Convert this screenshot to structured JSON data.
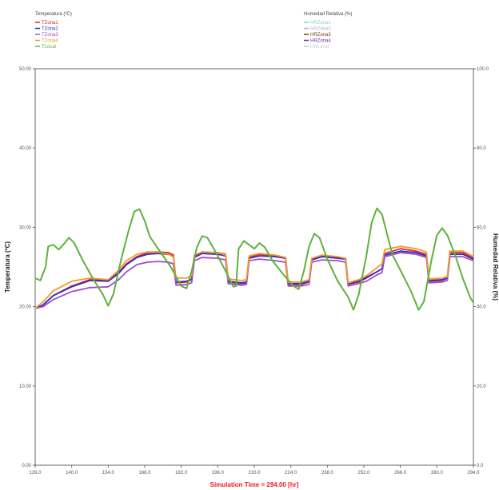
{
  "legend_left": {
    "title": "Temperatura (ºC)",
    "entries": [
      {
        "label": "TZona1",
        "color": "#e0242a"
      },
      {
        "label": "TZona2",
        "color": "#3030c0"
      },
      {
        "label": "TZona3",
        "color": "#9b4fd0"
      },
      {
        "label": "TZona4",
        "color": "#f39a2b"
      },
      {
        "label": "TLocal",
        "color": "#5cb33b"
      }
    ]
  },
  "legend_right": {
    "title": "Humedad Relativa (%)",
    "entries": [
      {
        "label": "HRZona1",
        "color": "#7fd6c8"
      },
      {
        "label": "HRZona2",
        "color": "#b0b0d8"
      },
      {
        "label": "HRZona3",
        "color": "#7b3a1a"
      },
      {
        "label": "HRZona4",
        "color": "#6a2fa0"
      },
      {
        "label": "HRLocal",
        "color": "#c9c9c9"
      }
    ]
  },
  "colors": {
    "x_title": "#e8202a",
    "frame": "#666666"
  },
  "chart_data": {
    "type": "line",
    "xlabel": "Simulation Time = 294.00 [hr]",
    "ylabel": "Temperatura (ºC)",
    "y2label": "Humedad Relativa (%)",
    "xlim": [
      126,
      294
    ],
    "ylim": [
      0,
      50
    ],
    "y2lim": [
      0,
      100
    ],
    "x_ticks": [
      "126.0",
      "140.0",
      "154.0",
      "168.0",
      "182.0",
      "196.0",
      "210.0",
      "224.0",
      "238.0",
      "252.0",
      "266.0",
      "280.0",
      "294.0"
    ],
    "y_ticks": [
      "0.00",
      "10.00",
      "20.00",
      "30.00",
      "40.00",
      "50.00"
    ],
    "y2_ticks": [
      "0.0",
      "20.0",
      "40.0",
      "60.0",
      "80.0",
      "100.0"
    ],
    "grid": false,
    "legend_position": "top",
    "series": [
      {
        "name": "TZona1",
        "color": "#e0242a",
        "points": [
          [
            126,
            19.8
          ],
          [
            129,
            20.2
          ],
          [
            133,
            21.4
          ],
          [
            140,
            22.6
          ],
          [
            147,
            23.4
          ],
          [
            154,
            23.3
          ],
          [
            158,
            24.3
          ],
          [
            161,
            25.4
          ],
          [
            165,
            26.3
          ],
          [
            169,
            26.8
          ],
          [
            173,
            26.9
          ],
          [
            177,
            26.8
          ],
          [
            179,
            26.5
          ],
          [
            180,
            23.0
          ],
          [
            184,
            23.1
          ],
          [
            186,
            23.4
          ],
          [
            187,
            26.3
          ],
          [
            190,
            26.9
          ],
          [
            196,
            26.8
          ],
          [
            199,
            26.6
          ],
          [
            200,
            23.1
          ],
          [
            205,
            22.9
          ],
          [
            207,
            23.0
          ],
          [
            208,
            26.2
          ],
          [
            212,
            26.6
          ],
          [
            218,
            26.4
          ],
          [
            222,
            26.2
          ],
          [
            223,
            22.8
          ],
          [
            228,
            22.8
          ],
          [
            231,
            23.1
          ],
          [
            232,
            26.0
          ],
          [
            236,
            26.4
          ],
          [
            242,
            26.2
          ],
          [
            245,
            26.1
          ],
          [
            246,
            22.8
          ],
          [
            250,
            23.1
          ],
          [
            253,
            23.6
          ],
          [
            257,
            24.4
          ],
          [
            259,
            24.8
          ],
          [
            260,
            26.7
          ],
          [
            266,
            27.3
          ],
          [
            272,
            27.0
          ],
          [
            276,
            26.6
          ],
          [
            277,
            23.2
          ],
          [
            282,
            23.3
          ],
          [
            284,
            23.6
          ],
          [
            285,
            26.8
          ],
          [
            290,
            26.8
          ],
          [
            294,
            26.1
          ]
        ]
      },
      {
        "name": "TZona2",
        "color": "#3030c0",
        "points": [
          [
            126,
            19.8
          ],
          [
            129,
            20.2
          ],
          [
            133,
            21.4
          ],
          [
            140,
            22.5
          ],
          [
            147,
            23.3
          ],
          [
            154,
            23.2
          ],
          [
            158,
            24.2
          ],
          [
            161,
            25.3
          ],
          [
            165,
            26.2
          ],
          [
            169,
            26.6
          ],
          [
            173,
            26.7
          ],
          [
            177,
            26.6
          ],
          [
            179,
            26.3
          ],
          [
            180,
            23.1
          ],
          [
            184,
            23.2
          ],
          [
            186,
            23.5
          ],
          [
            187,
            26.2
          ],
          [
            190,
            26.7
          ],
          [
            196,
            26.6
          ],
          [
            199,
            26.4
          ],
          [
            200,
            23.2
          ],
          [
            205,
            23.0
          ],
          [
            207,
            23.1
          ],
          [
            208,
            26.1
          ],
          [
            212,
            26.4
          ],
          [
            218,
            26.3
          ],
          [
            222,
            26.1
          ],
          [
            223,
            22.9
          ],
          [
            228,
            22.9
          ],
          [
            231,
            23.2
          ],
          [
            232,
            25.9
          ],
          [
            236,
            26.3
          ],
          [
            242,
            26.1
          ],
          [
            245,
            26.0
          ],
          [
            246,
            22.9
          ],
          [
            250,
            23.2
          ],
          [
            253,
            23.7
          ],
          [
            257,
            24.4
          ],
          [
            259,
            24.8
          ],
          [
            260,
            26.5
          ],
          [
            266,
            27.0
          ],
          [
            272,
            26.8
          ],
          [
            276,
            26.4
          ],
          [
            277,
            23.3
          ],
          [
            282,
            23.4
          ],
          [
            284,
            23.6
          ],
          [
            285,
            26.6
          ],
          [
            290,
            26.6
          ],
          [
            294,
            26.0
          ]
        ]
      },
      {
        "name": "TZona3",
        "color": "#9b4fd0",
        "points": [
          [
            126,
            19.8
          ],
          [
            129,
            20.0
          ],
          [
            133,
            20.9
          ],
          [
            140,
            21.9
          ],
          [
            147,
            22.4
          ],
          [
            154,
            22.5
          ],
          [
            158,
            23.4
          ],
          [
            161,
            24.4
          ],
          [
            165,
            25.3
          ],
          [
            169,
            25.6
          ],
          [
            173,
            25.7
          ],
          [
            177,
            25.6
          ],
          [
            179,
            25.4
          ],
          [
            180,
            22.7
          ],
          [
            184,
            22.8
          ],
          [
            186,
            23.0
          ],
          [
            187,
            25.8
          ],
          [
            190,
            26.2
          ],
          [
            196,
            26.1
          ],
          [
            199,
            25.9
          ],
          [
            200,
            22.9
          ],
          [
            205,
            22.7
          ],
          [
            207,
            22.8
          ],
          [
            208,
            25.8
          ],
          [
            212,
            26.0
          ],
          [
            218,
            25.8
          ],
          [
            222,
            25.6
          ],
          [
            223,
            22.6
          ],
          [
            228,
            22.6
          ],
          [
            231,
            22.8
          ],
          [
            232,
            25.6
          ],
          [
            236,
            25.9
          ],
          [
            242,
            25.8
          ],
          [
            245,
            25.6
          ],
          [
            246,
            22.6
          ],
          [
            250,
            22.9
          ],
          [
            253,
            23.2
          ],
          [
            257,
            24.0
          ],
          [
            259,
            24.3
          ],
          [
            260,
            26.3
          ],
          [
            266,
            26.8
          ],
          [
            272,
            26.6
          ],
          [
            276,
            26.2
          ],
          [
            277,
            23.0
          ],
          [
            282,
            23.1
          ],
          [
            284,
            23.3
          ],
          [
            285,
            26.3
          ],
          [
            290,
            26.3
          ],
          [
            294,
            25.8
          ]
        ]
      },
      {
        "name": "TZona4",
        "color": "#f39a2b",
        "points": [
          [
            126,
            19.8
          ],
          [
            129,
            20.6
          ],
          [
            133,
            22.0
          ],
          [
            140,
            23.2
          ],
          [
            147,
            23.6
          ],
          [
            154,
            23.4
          ],
          [
            158,
            24.6
          ],
          [
            161,
            25.8
          ],
          [
            165,
            26.6
          ],
          [
            169,
            26.9
          ],
          [
            173,
            26.9
          ],
          [
            177,
            26.6
          ],
          [
            179,
            26.3
          ],
          [
            180,
            23.6
          ],
          [
            184,
            23.6
          ],
          [
            186,
            23.9
          ],
          [
            187,
            26.5
          ],
          [
            190,
            26.9
          ],
          [
            196,
            26.8
          ],
          [
            199,
            26.5
          ],
          [
            200,
            23.5
          ],
          [
            205,
            23.3
          ],
          [
            207,
            23.4
          ],
          [
            208,
            26.4
          ],
          [
            212,
            26.7
          ],
          [
            218,
            26.5
          ],
          [
            222,
            26.2
          ],
          [
            223,
            23.1
          ],
          [
            228,
            23.1
          ],
          [
            231,
            23.4
          ],
          [
            232,
            26.1
          ],
          [
            236,
            26.5
          ],
          [
            242,
            26.3
          ],
          [
            245,
            26.1
          ],
          [
            246,
            23.0
          ],
          [
            250,
            23.4
          ],
          [
            253,
            23.9
          ],
          [
            257,
            24.9
          ],
          [
            259,
            25.4
          ],
          [
            260,
            27.2
          ],
          [
            266,
            27.6
          ],
          [
            272,
            27.3
          ],
          [
            276,
            26.9
          ],
          [
            277,
            23.5
          ],
          [
            282,
            23.6
          ],
          [
            284,
            23.8
          ],
          [
            285,
            27.0
          ],
          [
            290,
            27.0
          ],
          [
            294,
            26.3
          ]
        ]
      },
      {
        "name": "TLocal",
        "color": "#5cb33b",
        "points": [
          [
            126,
            23.6
          ],
          [
            128,
            23.3
          ],
          [
            130,
            25.0
          ],
          [
            131,
            27.6
          ],
          [
            133,
            27.8
          ],
          [
            135,
            27.2
          ],
          [
            137,
            27.9
          ],
          [
            139,
            28.7
          ],
          [
            141,
            28.0
          ],
          [
            144,
            26.0
          ],
          [
            148,
            23.6
          ],
          [
            152,
            21.5
          ],
          [
            154,
            20.1
          ],
          [
            156,
            21.6
          ],
          [
            159,
            26.0
          ],
          [
            162,
            29.8
          ],
          [
            164,
            32.0
          ],
          [
            166,
            32.3
          ],
          [
            168,
            30.8
          ],
          [
            170,
            28.8
          ],
          [
            174,
            26.9
          ],
          [
            178,
            25.0
          ],
          [
            182,
            22.6
          ],
          [
            184,
            22.3
          ],
          [
            186,
            24.5
          ],
          [
            188,
            27.5
          ],
          [
            190,
            28.9
          ],
          [
            192,
            28.7
          ],
          [
            195,
            27.0
          ],
          [
            199,
            24.5
          ],
          [
            202,
            22.5
          ],
          [
            203,
            22.6
          ],
          [
            204,
            27.3
          ],
          [
            206,
            28.3
          ],
          [
            208,
            27.8
          ],
          [
            210,
            27.3
          ],
          [
            212,
            28.0
          ],
          [
            214,
            27.5
          ],
          [
            217,
            25.8
          ],
          [
            221,
            24.1
          ],
          [
            225,
            22.6
          ],
          [
            227,
            22.2
          ],
          [
            229,
            24.5
          ],
          [
            231,
            27.6
          ],
          [
            233,
            29.2
          ],
          [
            235,
            28.7
          ],
          [
            238,
            26.0
          ],
          [
            242,
            23.2
          ],
          [
            246,
            21.2
          ],
          [
            248,
            19.6
          ],
          [
            250,
            21.5
          ],
          [
            253,
            26.5
          ],
          [
            255,
            30.6
          ],
          [
            257,
            32.4
          ],
          [
            259,
            31.6
          ],
          [
            261,
            29.0
          ],
          [
            263,
            26.5
          ],
          [
            266,
            24.6
          ],
          [
            270,
            22.0
          ],
          [
            273,
            19.6
          ],
          [
            275,
            20.6
          ],
          [
            278,
            26.0
          ],
          [
            280,
            29.0
          ],
          [
            282,
            29.9
          ],
          [
            284,
            29.0
          ],
          [
            287,
            26.5
          ],
          [
            290,
            23.5
          ],
          [
            293,
            21.0
          ],
          [
            294,
            20.5
          ]
        ]
      }
    ]
  }
}
